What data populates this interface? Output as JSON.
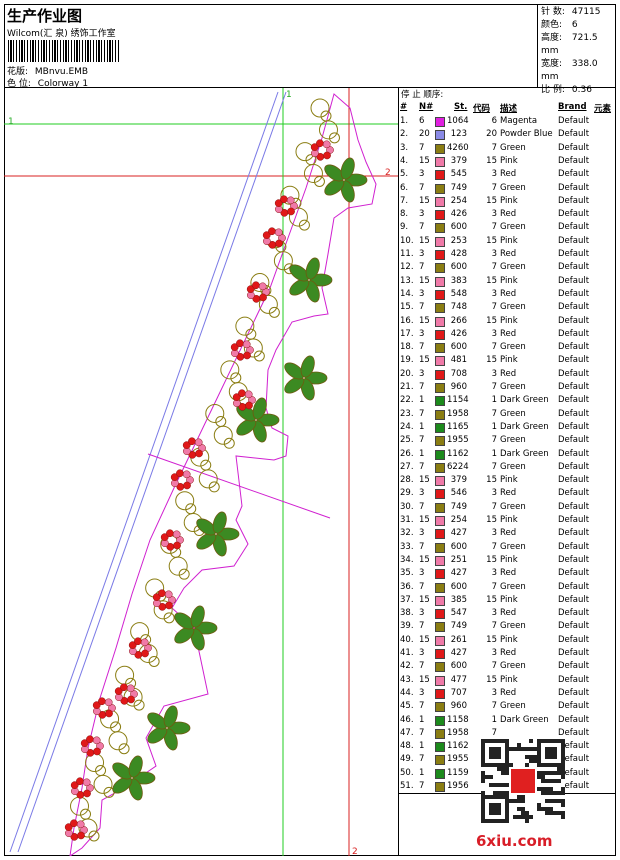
{
  "header": {
    "title": "生产作业图",
    "company": "Wilcom(汇 泉) 绣饰工作室",
    "design_label": "花版:",
    "design_name": "MBnvu.EMB",
    "colorway_label": "色 位:",
    "colorway_name": "Colorway 1"
  },
  "stats": [
    {
      "label": "针 数:",
      "value": "47115"
    },
    {
      "label": "颜色:",
      "value": "6"
    },
    {
      "label": "高度:",
      "value": "721.5 mm"
    },
    {
      "label": "宽度:",
      "value": "338.0 mm"
    },
    {
      "label": "比 例:",
      "value": "0.36"
    }
  ],
  "markers": {
    "guide_h1": "1",
    "guide_h2": "2",
    "guide_v1": "1",
    "guide_v2": "2"
  },
  "sequence": {
    "title": "停 止 顺序:",
    "headers": {
      "idx": "#",
      "needle": "N#",
      "stitches": "St.",
      "code": "代码",
      "desc": "描述",
      "brand": "Brand",
      "element": "元素"
    },
    "colors": {
      "Magenta": "#e020e0",
      "Powder Blue": "#8a8ae6",
      "Green": "#8a7d12",
      "Pink": "#f07aa8",
      "Red": "#e01818",
      "Dark Green": "#1c8a1c"
    },
    "rows": [
      {
        "idx": "1.",
        "n": "6",
        "st": "1064",
        "code": "6",
        "desc": "Magenta",
        "brand": "Default"
      },
      {
        "idx": "2.",
        "n": "20",
        "st": "123",
        "code": "20",
        "desc": "Powder Blue",
        "brand": "Default"
      },
      {
        "idx": "3.",
        "n": "7",
        "st": "4260",
        "code": "7",
        "desc": "Green",
        "brand": "Default"
      },
      {
        "idx": "4.",
        "n": "15",
        "st": "379",
        "code": "15",
        "desc": "Pink",
        "brand": "Default"
      },
      {
        "idx": "5.",
        "n": "3",
        "st": "545",
        "code": "3",
        "desc": "Red",
        "brand": "Default"
      },
      {
        "idx": "6.",
        "n": "7",
        "st": "749",
        "code": "7",
        "desc": "Green",
        "brand": "Default"
      },
      {
        "idx": "7.",
        "n": "15",
        "st": "254",
        "code": "15",
        "desc": "Pink",
        "brand": "Default"
      },
      {
        "idx": "8.",
        "n": "3",
        "st": "426",
        "code": "3",
        "desc": "Red",
        "brand": "Default"
      },
      {
        "idx": "9.",
        "n": "7",
        "st": "600",
        "code": "7",
        "desc": "Green",
        "brand": "Default"
      },
      {
        "idx": "10.",
        "n": "15",
        "st": "253",
        "code": "15",
        "desc": "Pink",
        "brand": "Default"
      },
      {
        "idx": "11.",
        "n": "3",
        "st": "428",
        "code": "3",
        "desc": "Red",
        "brand": "Default"
      },
      {
        "idx": "12.",
        "n": "7",
        "st": "600",
        "code": "7",
        "desc": "Green",
        "brand": "Default"
      },
      {
        "idx": "13.",
        "n": "15",
        "st": "383",
        "code": "15",
        "desc": "Pink",
        "brand": "Default"
      },
      {
        "idx": "14.",
        "n": "3",
        "st": "548",
        "code": "3",
        "desc": "Red",
        "brand": "Default"
      },
      {
        "idx": "15.",
        "n": "7",
        "st": "748",
        "code": "7",
        "desc": "Green",
        "brand": "Default"
      },
      {
        "idx": "16.",
        "n": "15",
        "st": "266",
        "code": "15",
        "desc": "Pink",
        "brand": "Default"
      },
      {
        "idx": "17.",
        "n": "3",
        "st": "426",
        "code": "3",
        "desc": "Red",
        "brand": "Default"
      },
      {
        "idx": "18.",
        "n": "7",
        "st": "600",
        "code": "7",
        "desc": "Green",
        "brand": "Default"
      },
      {
        "idx": "19.",
        "n": "15",
        "st": "481",
        "code": "15",
        "desc": "Pink",
        "brand": "Default"
      },
      {
        "idx": "20.",
        "n": "3",
        "st": "708",
        "code": "3",
        "desc": "Red",
        "brand": "Default"
      },
      {
        "idx": "21.",
        "n": "7",
        "st": "960",
        "code": "7",
        "desc": "Green",
        "brand": "Default"
      },
      {
        "idx": "22.",
        "n": "1",
        "st": "1154",
        "code": "1",
        "desc": "Dark Green",
        "brand": "Default"
      },
      {
        "idx": "23.",
        "n": "7",
        "st": "1958",
        "code": "7",
        "desc": "Green",
        "brand": "Default"
      },
      {
        "idx": "24.",
        "n": "1",
        "st": "1165",
        "code": "1",
        "desc": "Dark Green",
        "brand": "Default"
      },
      {
        "idx": "25.",
        "n": "7",
        "st": "1955",
        "code": "7",
        "desc": "Green",
        "brand": "Default"
      },
      {
        "idx": "26.",
        "n": "1",
        "st": "1162",
        "code": "1",
        "desc": "Dark Green",
        "brand": "Default"
      },
      {
        "idx": "27.",
        "n": "7",
        "st": "6224",
        "code": "7",
        "desc": "Green",
        "brand": "Default"
      },
      {
        "idx": "28.",
        "n": "15",
        "st": "379",
        "code": "15",
        "desc": "Pink",
        "brand": "Default"
      },
      {
        "idx": "29.",
        "n": "3",
        "st": "546",
        "code": "3",
        "desc": "Red",
        "brand": "Default"
      },
      {
        "idx": "30.",
        "n": "7",
        "st": "749",
        "code": "7",
        "desc": "Green",
        "brand": "Default"
      },
      {
        "idx": "31.",
        "n": "15",
        "st": "254",
        "code": "15",
        "desc": "Pink",
        "brand": "Default"
      },
      {
        "idx": "32.",
        "n": "3",
        "st": "427",
        "code": "3",
        "desc": "Red",
        "brand": "Default"
      },
      {
        "idx": "33.",
        "n": "7",
        "st": "600",
        "code": "7",
        "desc": "Green",
        "brand": "Default"
      },
      {
        "idx": "34.",
        "n": "15",
        "st": "251",
        "code": "15",
        "desc": "Pink",
        "brand": "Default"
      },
      {
        "idx": "35.",
        "n": "3",
        "st": "427",
        "code": "3",
        "desc": "Red",
        "brand": "Default"
      },
      {
        "idx": "36.",
        "n": "7",
        "st": "600",
        "code": "7",
        "desc": "Green",
        "brand": "Default"
      },
      {
        "idx": "37.",
        "n": "15",
        "st": "385",
        "code": "15",
        "desc": "Pink",
        "brand": "Default"
      },
      {
        "idx": "38.",
        "n": "3",
        "st": "547",
        "code": "3",
        "desc": "Red",
        "brand": "Default"
      },
      {
        "idx": "39.",
        "n": "7",
        "st": "749",
        "code": "7",
        "desc": "Green",
        "brand": "Default"
      },
      {
        "idx": "40.",
        "n": "15",
        "st": "261",
        "code": "15",
        "desc": "Pink",
        "brand": "Default"
      },
      {
        "idx": "41.",
        "n": "3",
        "st": "427",
        "code": "3",
        "desc": "Red",
        "brand": "Default"
      },
      {
        "idx": "42.",
        "n": "7",
        "st": "600",
        "code": "7",
        "desc": "Green",
        "brand": "Default"
      },
      {
        "idx": "43.",
        "n": "15",
        "st": "477",
        "code": "15",
        "desc": "Pink",
        "brand": "Default"
      },
      {
        "idx": "44.",
        "n": "3",
        "st": "707",
        "code": "3",
        "desc": "Red",
        "brand": "Default"
      },
      {
        "idx": "45.",
        "n": "7",
        "st": "960",
        "code": "7",
        "desc": "Green",
        "brand": "Default"
      },
      {
        "idx": "46.",
        "n": "1",
        "st": "1158",
        "code": "1",
        "desc": "Dark Green",
        "brand": "Default"
      },
      {
        "idx": "47.",
        "n": "7",
        "st": "1958",
        "code": "7",
        "desc": "",
        "brand": "Default"
      },
      {
        "idx": "48.",
        "n": "1",
        "st": "1162",
        "code": "",
        "desc": "",
        "brand": "Default"
      },
      {
        "idx": "49.",
        "n": "7",
        "st": "1955",
        "code": "",
        "desc": "",
        "brand": "Default"
      },
      {
        "idx": "50.",
        "n": "1",
        "st": "1159",
        "code": "",
        "desc": "",
        "brand": "Default"
      },
      {
        "idx": "51.",
        "n": "7",
        "st": "1956",
        "code": "",
        "desc": "",
        "brand": "Default"
      }
    ]
  },
  "watermark": {
    "logo": "6xiu.com"
  }
}
